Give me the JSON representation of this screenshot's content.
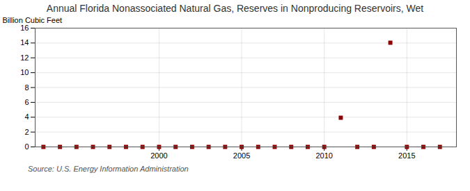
{
  "chart_data": {
    "type": "scatter",
    "title": "Annual Florida Nonassociated Natural Gas, Reserves in Nonproducing Reservoirs, Wet",
    "ylabel": "Billion Cubic Feet",
    "annotations": [
      "Source: U.S. Energy Information Administration"
    ],
    "x": [
      1993,
      1994,
      1995,
      1996,
      1997,
      1998,
      1999,
      2000,
      2001,
      2002,
      2003,
      2004,
      2005,
      2006,
      2007,
      2008,
      2009,
      2010,
      2011,
      2012,
      2013,
      2014,
      2015,
      2016,
      2017
    ],
    "values": [
      0,
      0,
      0,
      0,
      0,
      0,
      0,
      0,
      0,
      0,
      0,
      0,
      0,
      0,
      0,
      0,
      0,
      0,
      3.93,
      0,
      0,
      14.04,
      0,
      0,
      0
    ],
    "xlim": [
      1992.5,
      2018
    ],
    "xticks": [
      2000,
      2005,
      2010,
      2015
    ],
    "ylim": [
      0,
      16
    ],
    "yticks": [
      0,
      2,
      4,
      6,
      8,
      10,
      12,
      14,
      16
    ],
    "color": "#8b0000",
    "marker": "square",
    "grid": true
  }
}
